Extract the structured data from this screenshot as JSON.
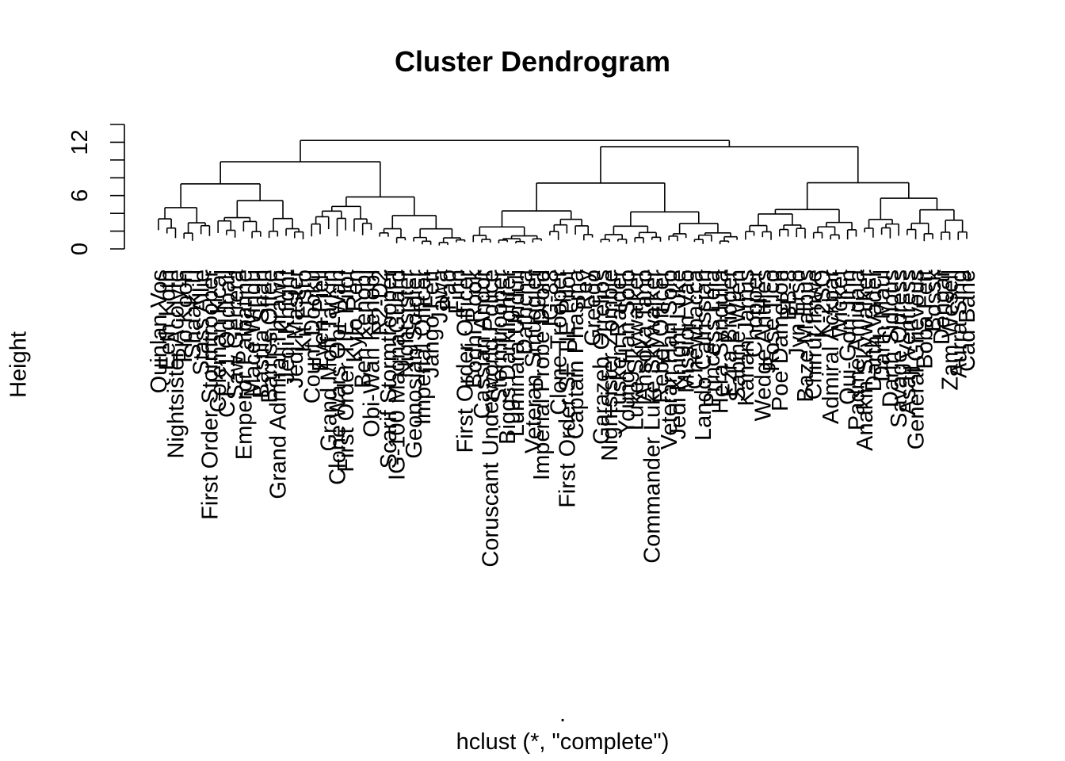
{
  "chart_data": {
    "type": "dendrogram",
    "title": "Cluster Dendrogram",
    "ylabel": "Height",
    "xlabel": ".",
    "sub": "hclust (*, \"complete\")",
    "y_ticks": [
      0,
      6,
      12
    ],
    "ylim": [
      0,
      14
    ],
    "leaf_count": 96,
    "leaf_labels": [
      "Quinlan Vos",
      "Eeth Koth",
      "Nightsister Acolyte",
      "Plo Koon",
      "Shaak Ti",
      "Stass Allie",
      "First Order Stormtrooper",
      "Coleman Kcaj",
      "CT-21 Oddball",
      "Saw Gerrera",
      "Emperor Palpatine",
      "Mace Windu",
      "Bastila Shan",
      "Barriss Offee",
      "Grand Admiral Thrawn",
      "Jedi Knight",
      "Jedi Master",
      "Kit Fisto",
      "Count Dooku",
      "Even Piell",
      "Grand Moff Tarkin",
      "Clone Wars Obi-Wan",
      "First Order TIE Pilot",
      "Kylo Ren",
      "Ben Kenobi",
      "Obi-Wan Kenobi",
      "R2-D2",
      "Scarif Stormtrooper",
      "IG-100 MagnaGuard",
      "Nightsister",
      "Geonosian Soldier",
      "Imperial Officer",
      "Jango Fett",
      "Jawa",
      "Pao",
      "Finn",
      "First Order Officer",
      "Bodhi Rook",
      "Cassian Andor",
      "Coruscant Underworld Police",
      "Stormtrooper",
      "Biggs Darklighter",
      "Luminara Unduli",
      "Dathcha",
      "Veteran Smuggler",
      "Imperial Probe Droid",
      "IG-88",
      "Clone Trooper",
      "First Order SF TIE Pilot",
      "Captain Phasma",
      "Rey",
      "Greedo",
      "Garazeb Orrelios",
      "Nightsister Zombie",
      "Tusken Raider",
      "Young Han Solo",
      "Luke Skywalker",
      "Ahsoka Tano",
      "Commander Luke Skywalker",
      "Rebel Officer",
      "Veteran Han Solo",
      "Jedi Knight Luke",
      "Mission Vao",
      "Chewbacca",
      "Lando Calrissian",
      "Princess Leia",
      "Hera Syndulla",
      "Ezra Bridger",
      "Sabine Wren",
      "Kanan Jarrus",
      "Chopper",
      "Wedge Antilles",
      "Rose Tico",
      "Poe Dameron",
      "BB-8",
      "Jyn Erso",
      "Baze Malbus",
      "Chirrut Imwe",
      "K-2SO",
      "Admiral Ackbar",
      "Wicket",
      "Qui-Gon Jinn",
      "Padme Amidala",
      "Anakin Skywalker",
      "Darth Vader",
      "Darth Maul",
      "Darth Sidious",
      "Savage Opress",
      "Asajj Ventress",
      "General Grievous",
      "Boba Fett",
      "Bossk",
      "Dengar",
      "Zam Wesell",
      "Aurra Sing",
      "Cad Bane"
    ]
  }
}
